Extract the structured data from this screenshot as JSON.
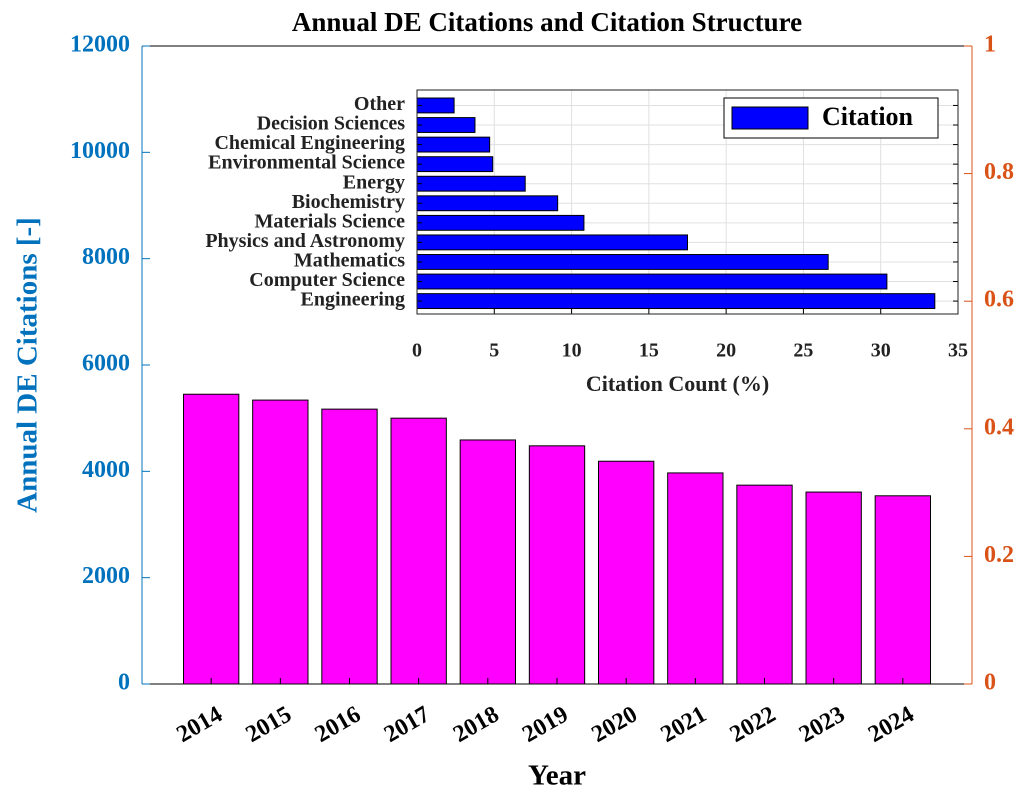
{
  "chart_data": [
    {
      "type": "bar",
      "title": "Annual DE Citations and Citation Structure",
      "ylabel": "Annual DE Citations [-]",
      "xlabel": "Year",
      "categories": [
        "2014",
        "2015",
        "2016",
        "2017",
        "2018",
        "2019",
        "2020",
        "2021",
        "2022",
        "2023",
        "2024"
      ],
      "values": [
        5450,
        5340,
        5170,
        5000,
        4590,
        4480,
        4190,
        3970,
        3740,
        3610,
        3540
      ],
      "color": "#ff00ff",
      "ylim": [
        0,
        12000
      ],
      "yticks": [
        0,
        2000,
        4000,
        6000,
        8000,
        10000,
        12000
      ],
      "y2lim": [
        0,
        1
      ],
      "y2ticks": [
        0,
        0.2,
        0.4,
        0.6,
        0.8,
        1
      ],
      "ycolor": "#0072bd",
      "y2color": "#d95319",
      "grid": false
    },
    {
      "type": "barh",
      "xlabel": "Citation Count (%)",
      "categories": [
        "Engineering",
        "Computer Science",
        "Mathematics",
        "Physics and Astronomy",
        "Materials Science",
        "Biochemistry",
        "Energy",
        "Environmental Science",
        "Chemical Engineering",
        "Decision Sciences",
        "Other"
      ],
      "series": [
        {
          "name": "Citation",
          "color": "#0000ff",
          "values": [
            33.5,
            30.4,
            26.6,
            17.5,
            10.8,
            9.1,
            7.0,
            4.9,
            4.7,
            3.75,
            2.4
          ]
        }
      ],
      "xlim": [
        0,
        35
      ],
      "xticks": [
        0,
        5,
        10,
        15,
        20,
        25,
        30,
        35
      ],
      "grid": true,
      "legend": "northeast"
    }
  ]
}
